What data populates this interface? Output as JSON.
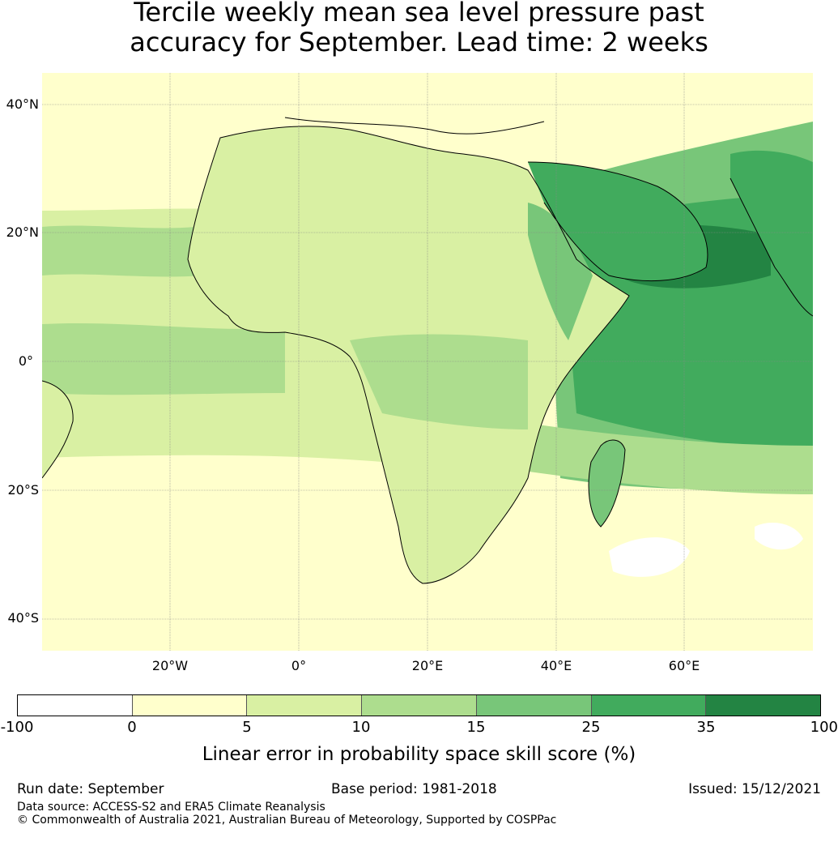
{
  "title": {
    "line1": "Tercile weekly mean sea level pressure past",
    "line2": "accuracy for September. Lead time: 2 weeks"
  },
  "map": {
    "region": "Africa",
    "lat_labels": [
      "40°N",
      "20°N",
      "0°",
      "20°S",
      "40°S"
    ],
    "lon_labels": [
      "20°W",
      "0°",
      "20°E",
      "40°E",
      "60°E"
    ],
    "colors": {
      "ocean_base": "#ffffcc",
      "land_base": "#d9f0a3",
      "coastline": "#000000",
      "gridline": "#888888"
    }
  },
  "colorbar": {
    "tick_labels": [
      "-100",
      "0",
      "5",
      "10",
      "15",
      "25",
      "35",
      "100"
    ],
    "colors": [
      "#ffffff",
      "#ffffcc",
      "#d9f0a3",
      "#addd8e",
      "#78c679",
      "#41ab5d",
      "#238443"
    ],
    "label": "Linear error in probability space skill score (%)"
  },
  "footer": {
    "run_date": "Run date: September",
    "base_period": "Base period: 1981-2018",
    "issued": "Issued: 15/12/2021",
    "data_source": "Data source: ACCESS-S2 and ERA5 Climate Reanalysis",
    "copyright": "© Commonwealth of Australia 2021, Australian Bureau of Meteorology, Supported by COSPPac"
  }
}
